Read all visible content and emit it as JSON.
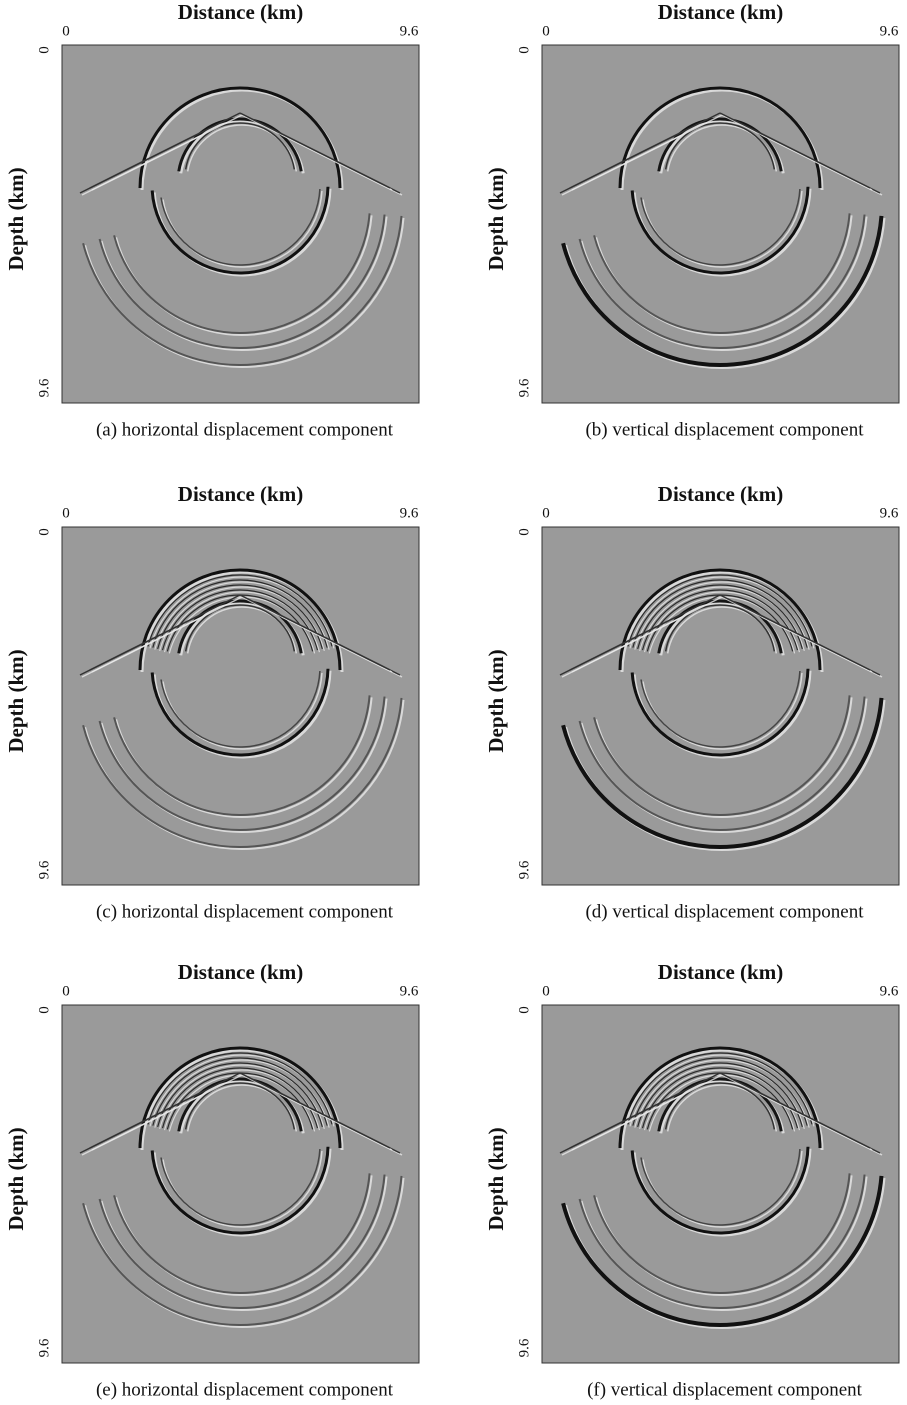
{
  "panels": [
    {
      "x_label": "Distance (km)",
      "x_ticks": [
        "0",
        "9.6"
      ],
      "y_label": "Depth (km)",
      "y_ticks": [
        "0",
        "9.6"
      ],
      "caption": "(a) horizontal displacement component"
    },
    {
      "x_label": "Distance (km)",
      "x_ticks": [
        "0",
        "9.6"
      ],
      "y_label": "Depth (km)",
      "y_ticks": [
        "0",
        "9.6"
      ],
      "caption": "(b) vertical displacement component"
    },
    {
      "x_label": "Distance (km)",
      "x_ticks": [
        "0",
        "9.6"
      ],
      "y_label": "Depth (km)",
      "y_ticks": [
        "0",
        "9.6"
      ],
      "caption": "(c) horizontal displacement component"
    },
    {
      "x_label": "Distance (km)",
      "x_ticks": [
        "0",
        "9.6"
      ],
      "y_label": "Depth (km)",
      "y_ticks": [
        "0",
        "9.6"
      ],
      "caption": "(d) vertical displacement component"
    },
    {
      "x_label": "Distance (km)",
      "x_ticks": [
        "0",
        "9.6"
      ],
      "y_label": "Depth (km)",
      "y_ticks": [
        "0",
        "9.6"
      ],
      "caption": "(e) horizontal displacement component"
    },
    {
      "x_label": "Distance (km)",
      "x_ticks": [
        "0",
        "9.6"
      ],
      "y_label": "Depth (km)",
      "y_ticks": [
        "0",
        "9.6"
      ],
      "caption": "(f) vertical displacement component"
    }
  ]
}
